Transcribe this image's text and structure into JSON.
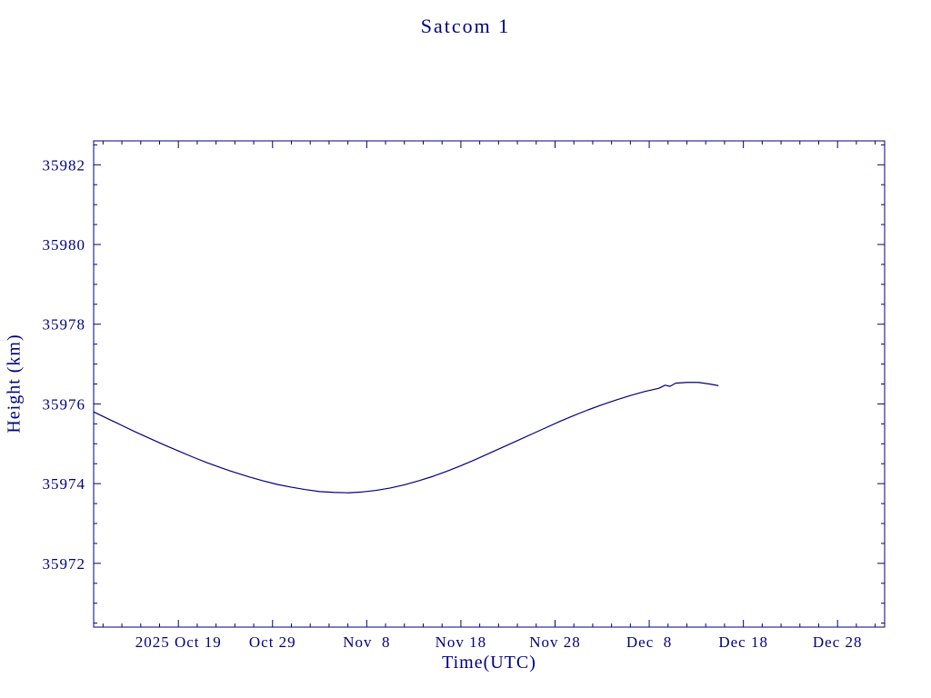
{
  "chart": {
    "title": "Satcom 1",
    "xlabel": "Time(UTC)",
    "ylabel": "Height (km)"
  },
  "chart_data": {
    "type": "line",
    "title": "Satcom 1",
    "xlabel": "Time(UTC)",
    "ylabel": "Height (km)",
    "line_color": "#000080",
    "axis_color": "#000080",
    "grid": false,
    "legend": "none",
    "x_unit": "days, 0 = 2025 Oct 10",
    "xlim": [
      0,
      84
    ],
    "ylim": [
      35970.4,
      35982.6
    ],
    "x_major_ticks": [
      {
        "pos": 9,
        "label": "2025 Oct 19"
      },
      {
        "pos": 19,
        "label": "Oct 29"
      },
      {
        "pos": 29,
        "label": "Nov  8"
      },
      {
        "pos": 39,
        "label": "Nov 18"
      },
      {
        "pos": 49,
        "label": "Nov 28"
      },
      {
        "pos": 59,
        "label": "Dec  8"
      },
      {
        "pos": 69,
        "label": "Dec 18"
      },
      {
        "pos": 79,
        "label": "Dec 28"
      }
    ],
    "x_minor_step": 2,
    "y_major_ticks": [
      {
        "pos": 35972,
        "label": "35972"
      },
      {
        "pos": 35974,
        "label": "35974"
      },
      {
        "pos": 35976,
        "label": "35976"
      },
      {
        "pos": 35978,
        "label": "35978"
      },
      {
        "pos": 35980,
        "label": "35980"
      },
      {
        "pos": 35982,
        "label": "35982"
      }
    ],
    "y_minor_step": 0.5,
    "series": [
      {
        "name": "height_km",
        "x": [
          0,
          1.5,
          3,
          4.5,
          6,
          7.5,
          9,
          10.5,
          12,
          13.5,
          15,
          16.5,
          18,
          19.5,
          21,
          22.5,
          24,
          25.5,
          27,
          28.5,
          30,
          31.5,
          33,
          34.5,
          36,
          37.5,
          39,
          40.5,
          42,
          43.5,
          45,
          46.5,
          48,
          49.5,
          51,
          52.5,
          54,
          55.5,
          57,
          58.5,
          60,
          60.7,
          61.2,
          61.8,
          63,
          64.2,
          65.4,
          66.3
        ],
        "y": [
          35975.8,
          35975.63,
          35975.46,
          35975.29,
          35975.13,
          35974.97,
          35974.82,
          35974.67,
          35974.53,
          35974.4,
          35974.28,
          35974.17,
          35974.07,
          35973.98,
          35973.91,
          35973.85,
          35973.8,
          35973.78,
          35973.77,
          35973.79,
          35973.83,
          35973.89,
          35973.97,
          35974.07,
          35974.18,
          35974.31,
          35974.45,
          35974.6,
          35974.76,
          35974.92,
          35975.08,
          35975.24,
          35975.4,
          35975.56,
          35975.71,
          35975.85,
          35975.98,
          35976.1,
          35976.21,
          35976.31,
          35976.39,
          35976.47,
          35976.44,
          35976.52,
          35976.54,
          35976.54,
          35976.5,
          35976.46
        ]
      }
    ]
  }
}
